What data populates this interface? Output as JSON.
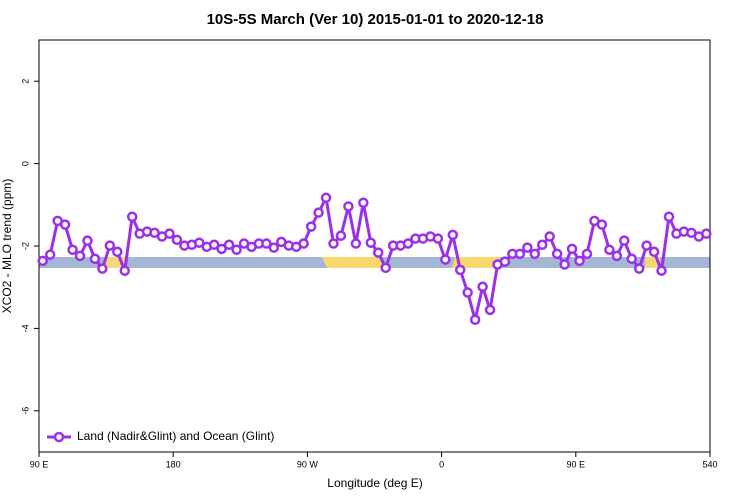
{
  "chart_data": {
    "type": "line",
    "title": "10S-5S March (Ver 10)   2015-01-01 to 2020-12-18",
    "x_label": "Longitude (deg E)",
    "y_label": "XCO2 - MLO trend (ppm)",
    "xlim": [
      90,
      540
    ],
    "ylim": [
      -7,
      3
    ],
    "xticks": [
      {
        "value": 90,
        "label": "90 E"
      },
      180,
      {
        "value": 270,
        "label": "90 W"
      },
      {
        "value": 360,
        "label": "0"
      },
      {
        "value": 450,
        "label": "90 E"
      },
      540
    ],
    "yticks": [
      2,
      0,
      -2,
      -4,
      -6
    ],
    "legend": "bottom-left",
    "series": [
      {
        "name": "Land (Nadir&Glint) and Ocean (Glint)",
        "color": "#9b30e8",
        "x": [
          92.5,
          97.5,
          102.5,
          107.5,
          112.5,
          117.5,
          122.5,
          127.5,
          132.5,
          137.5,
          142.5,
          147.5,
          152.5,
          157.5,
          162.5,
          167.5,
          172.5,
          177.5,
          182.5,
          187.5,
          192.5,
          197.5,
          202.5,
          207.5,
          212.5,
          217.5,
          222.5,
          227.5,
          232.5,
          237.5,
          242.5,
          247.5,
          252.5,
          257.5,
          262.5,
          267.5,
          272.5,
          277.5,
          282.5,
          287.5,
          292.5,
          297.5,
          302.5,
          307.5,
          312.5,
          317.5,
          322.5,
          327.5,
          332.5,
          337.5,
          342.5,
          347.5,
          352.5,
          357.5,
          362.5,
          367.5,
          372.5,
          377.5,
          382.5,
          387.5,
          392.5,
          397.5,
          402.5,
          407.5,
          412.5,
          417.5,
          422.5,
          427.5,
          432.5,
          437.5,
          442.5,
          447.5,
          452.5,
          457.5,
          462.5,
          467.5,
          472.5,
          477.5,
          482.5,
          487.5,
          492.5,
          497.5,
          502.5,
          507.5,
          512.5,
          517.5,
          522.5,
          527.5,
          532.5,
          537.5
        ],
        "values": [
          -2.36,
          -2.21,
          -1.39,
          -1.48,
          -2.09,
          -2.24,
          -1.87,
          -2.31,
          -2.55,
          -1.99,
          -2.14,
          -2.6,
          -1.29,
          -1.7,
          -1.65,
          -1.68,
          -1.77,
          -1.7,
          -1.85,
          -1.99,
          -1.97,
          -1.92,
          -2.02,
          -1.97,
          -2.07,
          -1.97,
          -2.09,
          -1.94,
          -2.02,
          -1.94,
          -1.94,
          -2.04,
          -1.9,
          -1.99,
          -2.02,
          -1.94,
          -1.53,
          -1.19,
          -0.83,
          -1.94,
          -1.75,
          -1.04,
          -1.94,
          -0.95,
          -1.92,
          -2.16,
          -2.53,
          -1.99,
          -1.99,
          -1.94,
          -1.82,
          -1.82,
          -1.77,
          -1.82,
          -2.33,
          -1.73,
          -2.58,
          -3.13,
          -3.79,
          -2.99,
          -3.55,
          -2.45,
          -2.38,
          -2.19,
          -2.19,
          -2.04,
          -2.19,
          -1.97,
          -1.77,
          -2.19,
          -2.45,
          -2.07,
          -2.36,
          -2.19,
          -1.39,
          -1.48,
          -2.09,
          -2.24,
          -1.87,
          -2.31,
          -2.55,
          -1.99,
          -2.14,
          -2.6,
          -1.29,
          -1.7,
          -1.65,
          -1.68,
          -1.77,
          -1.7
        ]
      }
    ]
  }
}
